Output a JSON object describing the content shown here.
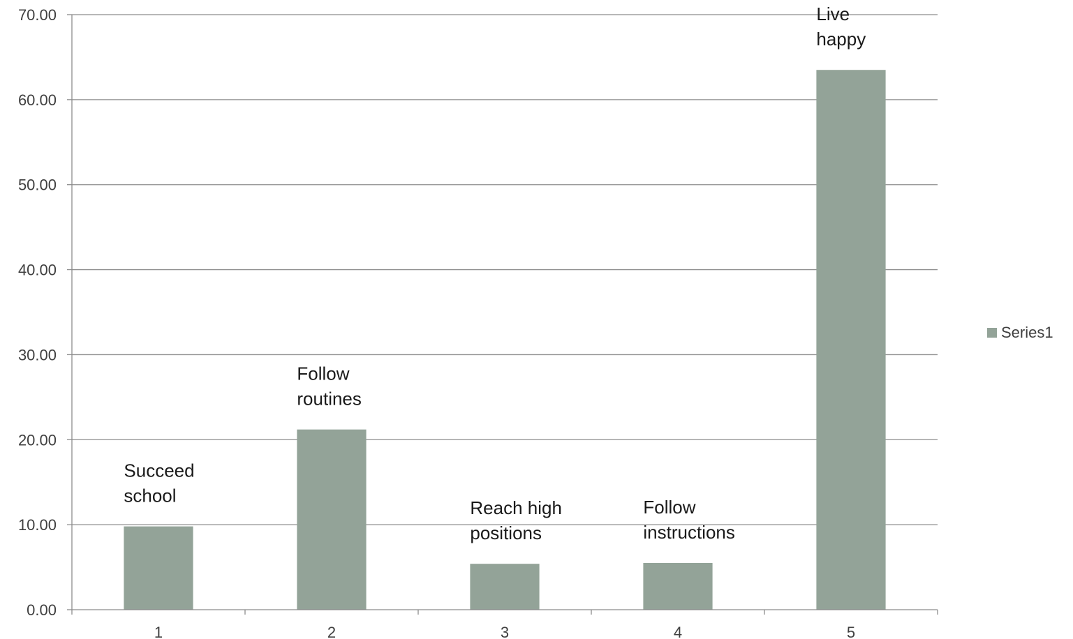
{
  "chart_data": {
    "type": "bar",
    "categories": [
      "1",
      "2",
      "3",
      "4",
      "5"
    ],
    "series": [
      {
        "name": "Series1",
        "values": [
          9.8,
          21.2,
          5.4,
          5.5,
          63.5
        ]
      }
    ],
    "annotations": [
      [
        "Succeed",
        "school"
      ],
      [
        "Follow",
        "routines"
      ],
      [
        "Reach high",
        "positions"
      ],
      [
        "Follow",
        "instructions"
      ],
      [
        "Live",
        "happy"
      ]
    ],
    "ylim": [
      0,
      70
    ],
    "yticks": [
      "0.00",
      "10.00",
      "20.00",
      "30.00",
      "40.00",
      "50.00",
      "60.00",
      "70.00"
    ],
    "grid": true,
    "legend_position": "right",
    "colors": {
      "bar": "#93a398",
      "grid": "#8c8c8c",
      "axis": "#8c8c8c"
    }
  }
}
